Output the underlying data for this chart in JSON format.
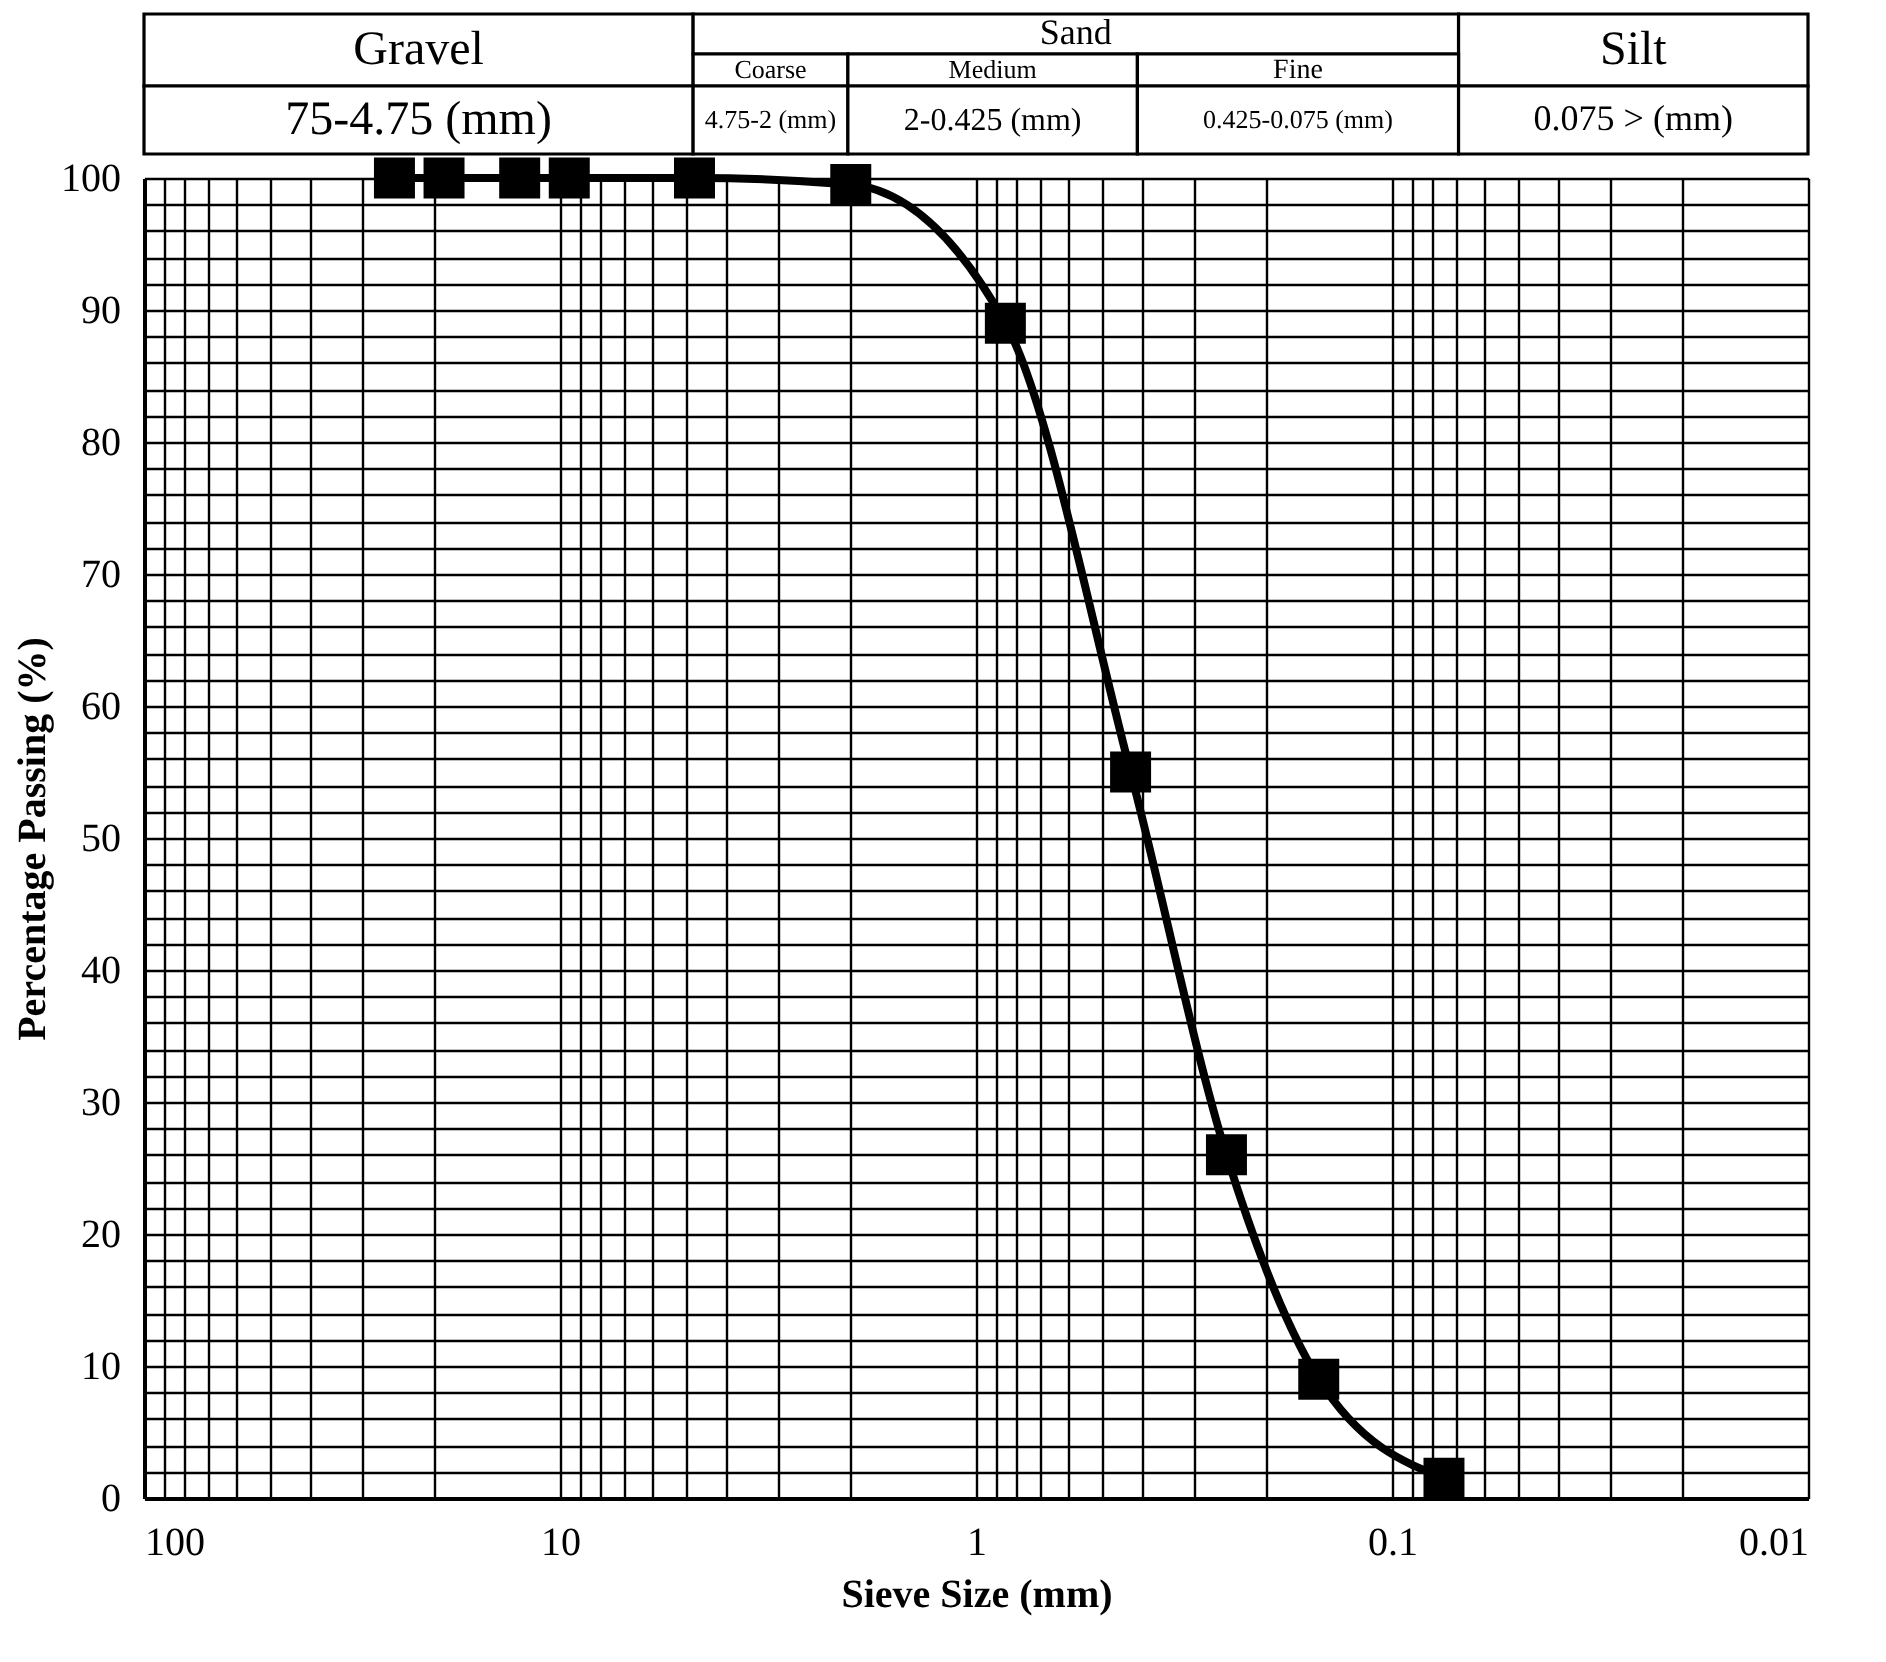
{
  "chart_data": {
    "type": "line",
    "xlabel": "Sieve Size (mm)",
    "ylabel": "Percentage Passing (%)",
    "x": [
      25,
      19,
      12.5,
      9.5,
      4.75,
      2,
      0.85,
      0.425,
      0.25,
      0.15,
      0.075
    ],
    "series": [
      {
        "color": "#000000",
        "values": [
          100,
          100,
          100,
          100,
          100,
          99.5,
          89,
          55,
          26,
          9,
          1.5
        ]
      }
    ],
    "marker": "square",
    "line_style": "solid",
    "log": "x",
    "grid": true,
    "xlim": [
      100,
      0.01
    ],
    "ylim": [
      0,
      100
    ],
    "xticks": [
      100,
      {
        "value": 90,
        "label": null
      },
      {
        "value": 80,
        "label": null
      },
      {
        "value": 70,
        "label": null
      },
      {
        "value": 60,
        "label": null
      },
      {
        "value": 50,
        "label": null
      },
      {
        "value": 40,
        "label": null
      },
      {
        "value": 30,
        "label": null
      },
      {
        "value": 20,
        "label": null
      },
      10,
      {
        "value": 9,
        "label": null
      },
      {
        "value": 8,
        "label": null
      },
      {
        "value": 7,
        "label": null
      },
      {
        "value": 6,
        "label": null
      },
      {
        "value": 5,
        "label": null
      },
      {
        "value": 4,
        "label": null
      },
      {
        "value": 3,
        "label": null
      },
      {
        "value": 2,
        "label": null
      },
      1,
      {
        "value": 0.9,
        "label": null
      },
      {
        "value": 0.8,
        "label": null
      },
      {
        "value": 0.7,
        "label": null
      },
      {
        "value": 0.6,
        "label": null
      },
      {
        "value": 0.5,
        "label": null
      },
      {
        "value": 0.4,
        "label": null
      },
      {
        "value": 0.3,
        "label": null
      },
      {
        "value": 0.2,
        "label": null
      },
      0.1,
      {
        "value": 0.09,
        "label": null
      },
      {
        "value": 0.08,
        "label": null
      },
      {
        "value": 0.07,
        "label": null
      },
      {
        "value": 0.06,
        "label": null
      },
      {
        "value": 0.05,
        "label": null
      },
      {
        "value": 0.04,
        "label": null
      },
      {
        "value": 0.03,
        "label": null
      },
      {
        "value": 0.02,
        "label": null
      },
      0.01
    ],
    "yticks": [
      0,
      {
        "value": 2,
        "label": null
      },
      {
        "value": 4,
        "label": null
      },
      {
        "value": 6,
        "label": null
      },
      {
        "value": 8,
        "label": null
      },
      10,
      {
        "value": 12,
        "label": null
      },
      {
        "value": 14,
        "label": null
      },
      {
        "value": 16,
        "label": null
      },
      {
        "value": 18,
        "label": null
      },
      20,
      {
        "value": 22,
        "label": null
      },
      {
        "value": 24,
        "label": null
      },
      {
        "value": 26,
        "label": null
      },
      {
        "value": 28,
        "label": null
      },
      30,
      {
        "value": 32,
        "label": null
      },
      {
        "value": 34,
        "label": null
      },
      {
        "value": 36,
        "label": null
      },
      {
        "value": 38,
        "label": null
      },
      40,
      {
        "value": 42,
        "label": null
      },
      {
        "value": 44,
        "label": null
      },
      {
        "value": 46,
        "label": null
      },
      {
        "value": 48,
        "label": null
      },
      50,
      {
        "value": 52,
        "label": null
      },
      {
        "value": 54,
        "label": null
      },
      {
        "value": 56,
        "label": null
      },
      {
        "value": 58,
        "label": null
      },
      60,
      {
        "value": 62,
        "label": null
      },
      {
        "value": 64,
        "label": null
      },
      {
        "value": 66,
        "label": null
      },
      {
        "value": 68,
        "label": null
      },
      70,
      {
        "value": 72,
        "label": null
      },
      {
        "value": 74,
        "label": null
      },
      {
        "value": 76,
        "label": null
      },
      {
        "value": 78,
        "label": null
      },
      80,
      {
        "value": 82,
        "label": null
      },
      {
        "value": 84,
        "label": null
      },
      {
        "value": 86,
        "label": null
      },
      {
        "value": 88,
        "label": null
      },
      90,
      {
        "value": 92,
        "label": null
      },
      {
        "value": 94,
        "label": null
      },
      {
        "value": 96,
        "label": null
      },
      {
        "value": 98,
        "label": null
      },
      100
    ],
    "annotations": [
      "Gravel",
      "Sand",
      "Silt",
      "Coarse",
      "Medium",
      "Fine",
      "75-4.75 (mm)",
      "4.75-2 (mm)",
      "2-0.425 (mm)",
      "0.425-0.075 (mm)",
      "0.075 > (mm)"
    ]
  }
}
